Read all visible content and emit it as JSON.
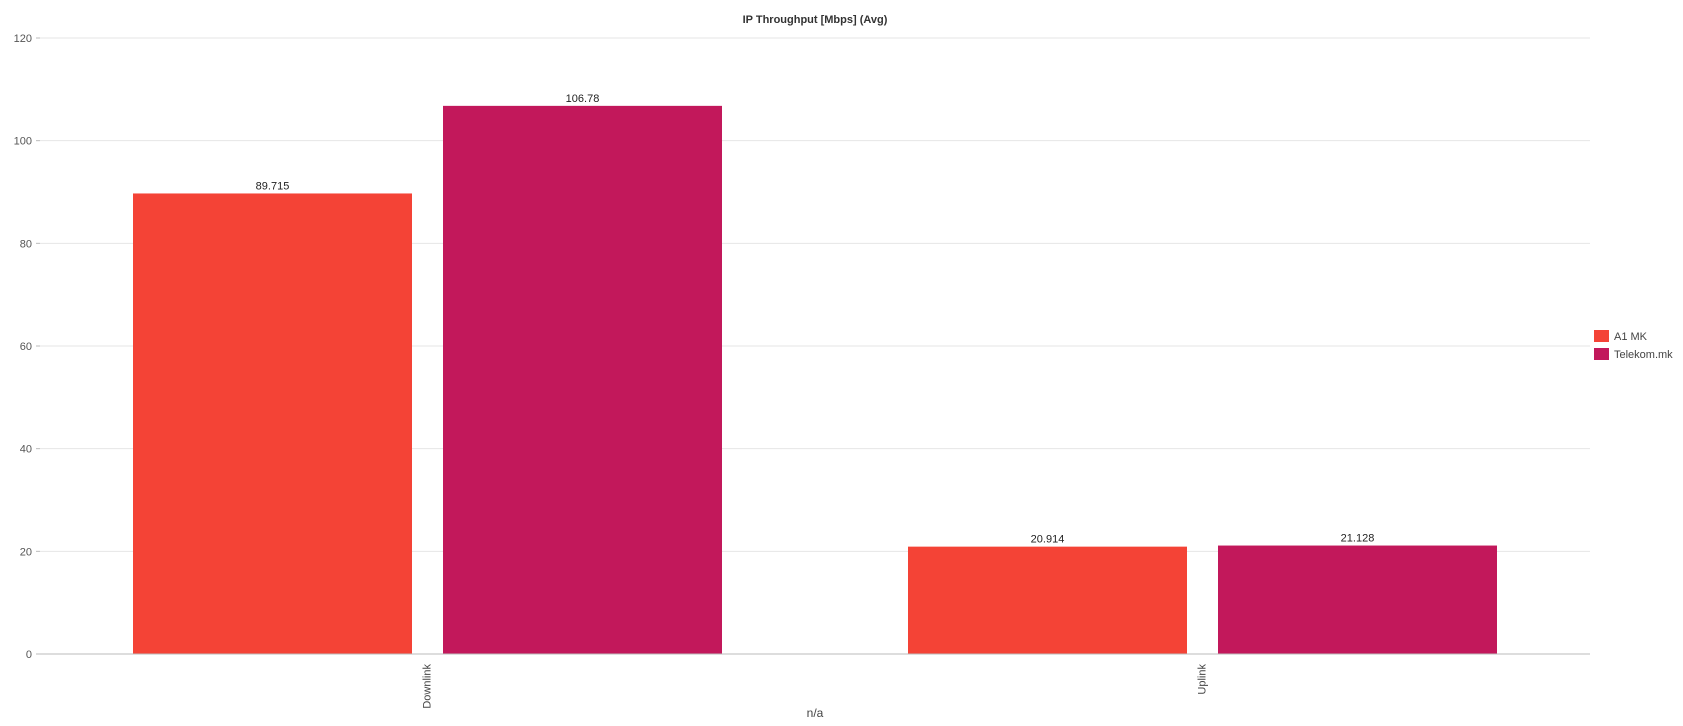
{
  "chart_data": {
    "type": "bar",
    "title": "IP Throughput [Mbps] (Avg)",
    "xlabel": "n/a",
    "ylabel": "",
    "categories": [
      "Downlink",
      "Uplink"
    ],
    "series": [
      {
        "name": "A1 MK",
        "color": "#f44336",
        "values": [
          89.715,
          20.914
        ],
        "labels": [
          "89.715",
          "20.914"
        ]
      },
      {
        "name": "Telekom.mk",
        "color": "#c2185b",
        "values": [
          106.78,
          21.128
        ],
        "labels": [
          "106.78",
          "21.128"
        ]
      }
    ],
    "ylim": [
      0,
      120
    ],
    "yticks": [
      0,
      20,
      40,
      60,
      80,
      100,
      120
    ],
    "grid": true,
    "legend_position": "right"
  }
}
